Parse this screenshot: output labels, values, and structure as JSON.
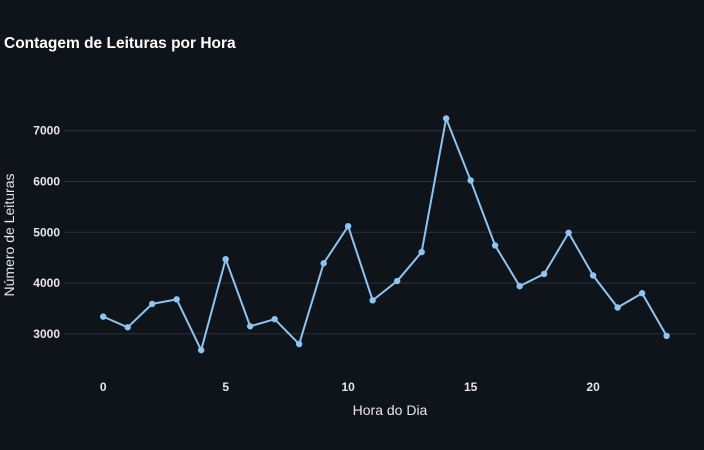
{
  "chart_data": {
    "type": "line",
    "title": "Contagem de Leituras por Hora",
    "xlabel": "Hora do Dia",
    "ylabel": "Número de Leituras",
    "x": [
      0,
      1,
      2,
      3,
      4,
      5,
      6,
      7,
      8,
      9,
      10,
      11,
      12,
      13,
      14,
      15,
      16,
      17,
      18,
      19,
      20,
      21,
      22,
      23
    ],
    "series": [
      {
        "values": [
          3340,
          3130,
          3590,
          3680,
          2680,
          4470,
          3150,
          3290,
          2800,
          4390,
          5120,
          3660,
          4040,
          4610,
          7240,
          6020,
          4740,
          3940,
          4180,
          4990,
          4150,
          3520,
          3800,
          2960
        ]
      }
    ],
    "xlim": [
      -1.6,
      24.2
    ],
    "ylim": [
      2250,
      7800
    ],
    "x_ticks": [
      0,
      5,
      10,
      15,
      20
    ],
    "y_ticks": [
      3000,
      4000,
      5000,
      6000,
      7000
    ],
    "grid": "horizontal",
    "colors": {
      "background": "#0f131a",
      "line": "#8cc4f2",
      "grid": "#2b313b",
      "text": "#e6e6e6"
    }
  }
}
